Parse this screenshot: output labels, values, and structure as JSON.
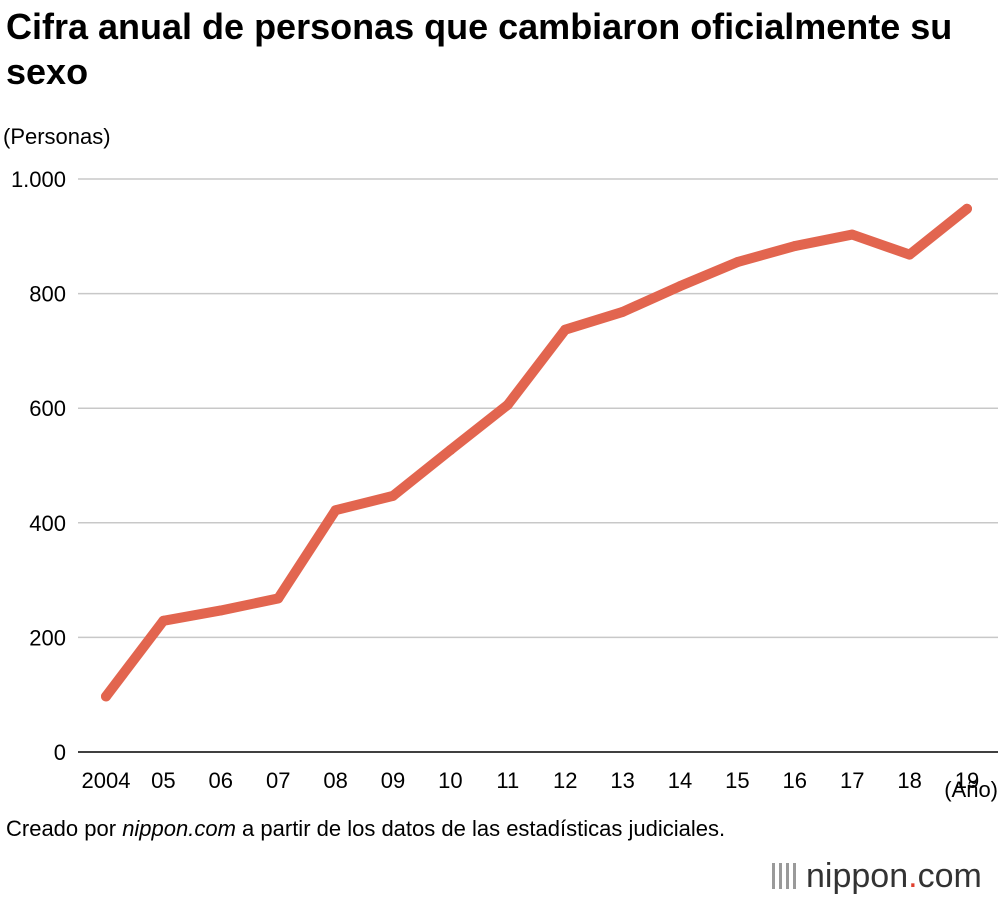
{
  "chart_data": {
    "type": "line",
    "title": "Cifra anual de personas que cambiaron oficialmente su sexo",
    "ylabel": "(Personas)",
    "xlabel": "(Año)",
    "categories": [
      "2004",
      "05",
      "06",
      "07",
      "08",
      "09",
      "10",
      "11",
      "12",
      "13",
      "14",
      "15",
      "16",
      "17",
      "18",
      "19"
    ],
    "series": [
      {
        "name": "Personas",
        "values": [
          97,
          229,
          247,
          268,
          422,
          447,
          527,
          606,
          737,
          768,
          813,
          855,
          883,
          903,
          868,
          948
        ]
      }
    ],
    "ylim": [
      0,
      1000
    ],
    "yticks": [
      0,
      200,
      400,
      600,
      800,
      1000
    ],
    "ytick_labels": [
      "0",
      "200",
      "400",
      "600",
      "800",
      "1.000"
    ],
    "grid": true,
    "line_color": "#e2654f"
  },
  "source": {
    "prefix": "Creado por ",
    "site": "nippon.com",
    "suffix": " a partir de los datos de las estadísticas judiciales."
  },
  "logo": {
    "name": "nippon",
    "dot": ".",
    "tld": "com"
  }
}
